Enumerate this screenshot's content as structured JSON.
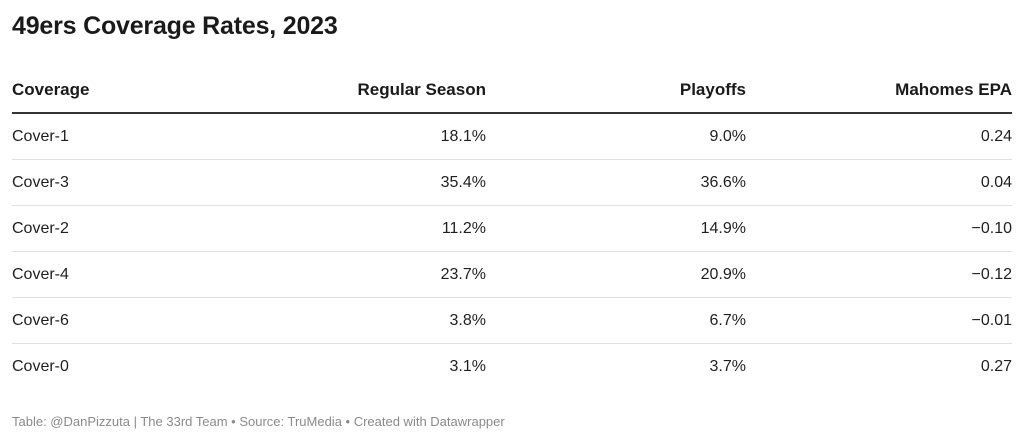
{
  "title": "49ers Coverage Rates, 2023",
  "chart_data": {
    "type": "table",
    "title": "49ers Coverage Rates, 2023",
    "columns": [
      "Coverage",
      "Regular Season",
      "Playoffs",
      "Mahomes EPA"
    ],
    "rows": [
      [
        "Cover-1",
        "18.1%",
        "9.0%",
        "0.24"
      ],
      [
        "Cover-3",
        "35.4%",
        "36.6%",
        "0.04"
      ],
      [
        "Cover-2",
        "11.2%",
        "14.9%",
        "−0.10"
      ],
      [
        "Cover-4",
        "23.7%",
        "20.9%",
        "−0.12"
      ],
      [
        "Cover-6",
        "3.8%",
        "6.7%",
        "−0.01"
      ],
      [
        "Cover-0",
        "3.1%",
        "3.7%",
        "0.27"
      ]
    ]
  },
  "footer": "Table: @DanPizzuta | The 33rd Team • Source: TruMedia • Created with Datawrapper"
}
